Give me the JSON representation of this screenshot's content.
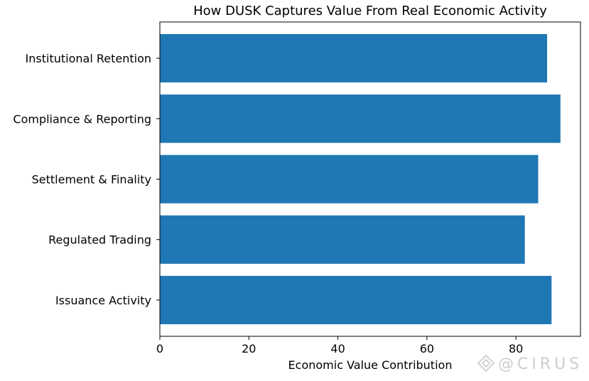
{
  "chart_data": {
    "type": "bar",
    "orientation": "horizontal",
    "title": "How DUSK Captures Value From Real Economic Activity",
    "xlabel": "Economic Value Contribution",
    "ylabel": "",
    "categories": [
      "Issuance Activity",
      "Regulated Trading",
      "Settlement & Finality",
      "Compliance & Reporting",
      "Institutional Retention"
    ],
    "values": [
      88,
      82,
      85,
      90,
      87
    ],
    "xlim": [
      0,
      94.5
    ],
    "xticks": [
      0,
      20,
      40,
      60,
      80
    ],
    "grid": false,
    "bar_color": "#1f77b4"
  },
  "watermark": {
    "text": "@CIRUS",
    "icon": "diamond-logo-icon"
  }
}
